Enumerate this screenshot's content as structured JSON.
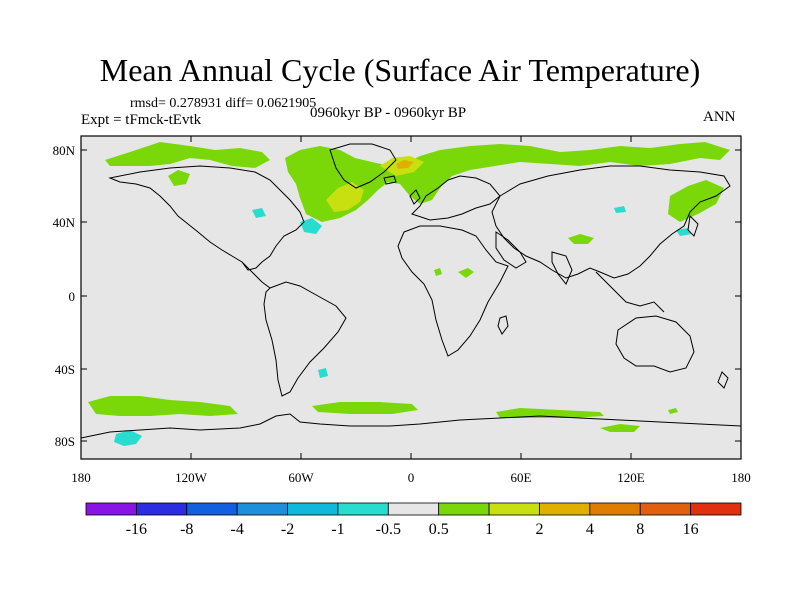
{
  "title": "Mean Annual Cycle (Surface Air Temperature)",
  "stats": "rmsd= 0.278931 diff= 0.0621905",
  "experiment": "Expt = tFmck-tEvtk",
  "period": "0960kyr BP - 0960kyr BP",
  "season": "ANN",
  "map": {
    "lat_ticks": [
      "80N",
      "40N",
      "0",
      "40S",
      "80S"
    ],
    "lon_ticks": [
      "180",
      "120W",
      "60W",
      "0",
      "60E",
      "120E",
      "180"
    ],
    "background_color": "#e6e6e6"
  },
  "colorbar": {
    "labels": [
      "-16",
      "-8",
      "-4",
      "-2",
      "-1",
      "-0.5",
      "0.5",
      "1",
      "2",
      "4",
      "8",
      "16"
    ],
    "colors": [
      "#8a14e6",
      "#2c2ce0",
      "#1060e0",
      "#1c90dc",
      "#10b8dc",
      "#28dcd0",
      "#e6e6e6",
      "#7ad808",
      "#c8e010",
      "#e0b000",
      "#e07c00",
      "#e06010",
      "#e03010"
    ]
  }
}
